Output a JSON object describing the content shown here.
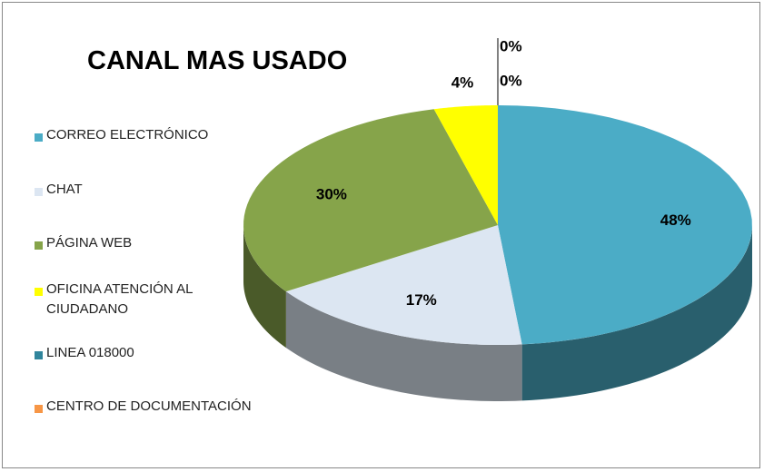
{
  "chart_data": {
    "type": "pie",
    "title": "CANAL MAS USADO",
    "categories": [
      "CORREO ELECTRÓNICO",
      "CHAT",
      "PÁGINA WEB",
      "OFICINA ATENCIÓN AL CIUDADANO",
      "LINEA 018000",
      "CENTRO DE DOCUMENTACIÓN"
    ],
    "values": [
      48,
      17,
      30,
      4,
      0,
      0
    ],
    "value_labels": [
      "48%",
      "17%",
      "30%",
      "4%",
      "0%",
      "0%"
    ],
    "colors": [
      "#4bacc6",
      "#dce6f2",
      "#86a44a",
      "#ffff00",
      "#31859c",
      "#f79646"
    ],
    "legend": "left"
  }
}
